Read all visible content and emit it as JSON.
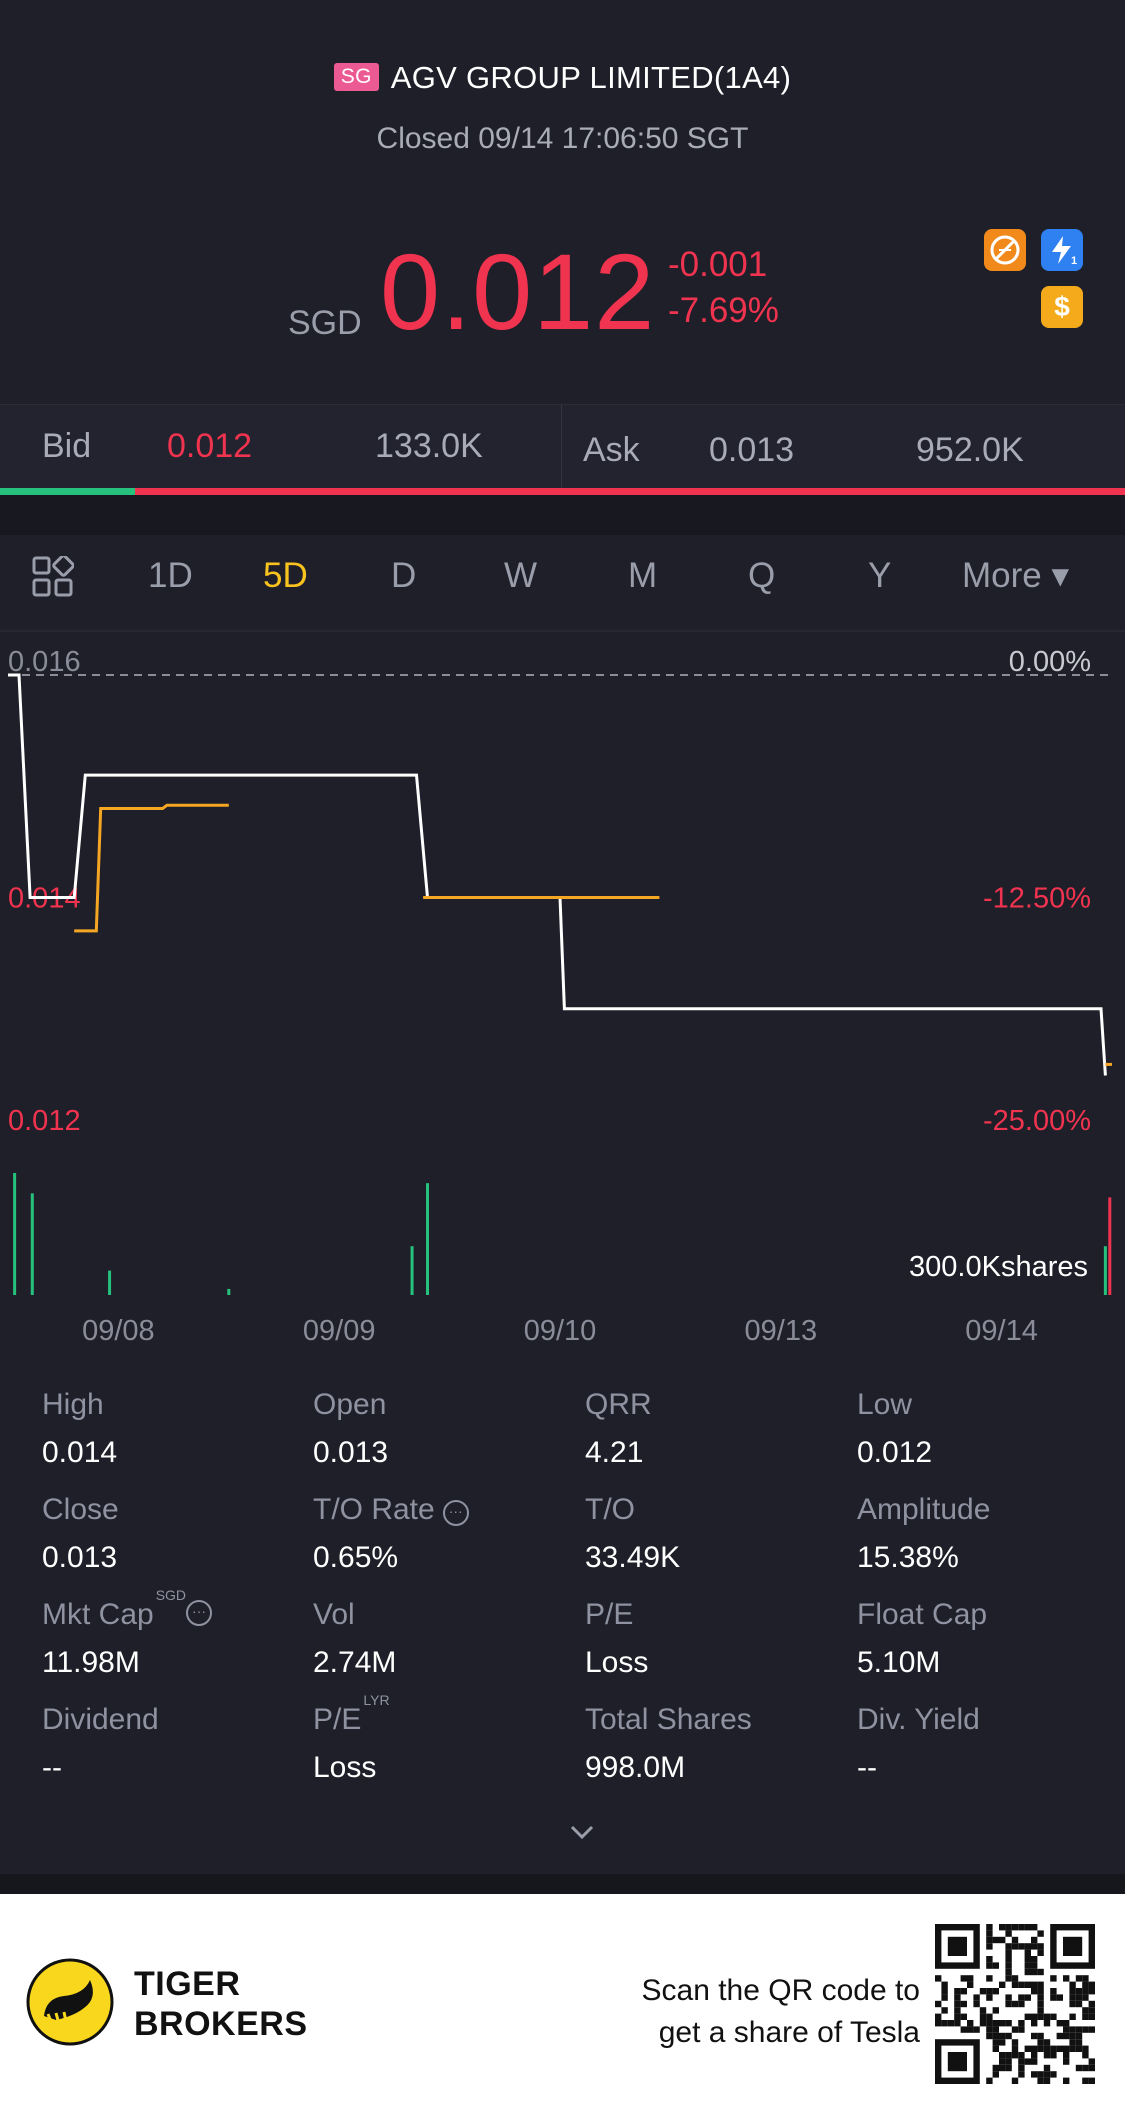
{
  "header": {
    "market_flag": "SG",
    "title": "AGV GROUP LIMITED(1A4)",
    "status": "Closed 09/14 17:06:50 SGT"
  },
  "quote": {
    "currency": "SGD",
    "price": "0.012",
    "change": "-0.001",
    "change_pct": "-7.69%",
    "accent_down": "#f0334f",
    "accent_up": "#26c27d"
  },
  "badges": [
    {
      "icon": "no-short-icon"
    },
    {
      "icon": "lightning-level1-icon"
    },
    {
      "icon": "dollar-icon",
      "glyph": "$"
    }
  ],
  "bidask": {
    "bid_label": "Bid",
    "bid_price": "0.012",
    "bid_size": "133.0K",
    "ask_label": "Ask",
    "ask_price": "0.013",
    "ask_size": "952.0K",
    "bid_ratio": 0.12
  },
  "tabs": [
    {
      "label": "1D",
      "active": false
    },
    {
      "label": "5D",
      "active": true
    },
    {
      "label": "D",
      "active": false
    },
    {
      "label": "W",
      "active": false
    },
    {
      "label": "M",
      "active": false
    },
    {
      "label": "Q",
      "active": false
    },
    {
      "label": "Y",
      "active": false
    },
    {
      "label": "More ▾",
      "active": false
    }
  ],
  "chart_data": {
    "type": "line",
    "title": "AGV GROUP LIMITED(1A4) 5D",
    "x_labels": [
      "09/08",
      "09/09",
      "09/10",
      "09/13",
      "09/14"
    ],
    "y_left_labels": [
      "0.016",
      "0.014",
      "0.012"
    ],
    "y_right_labels": [
      "0.00%",
      "-12.50%",
      "-25.00%"
    ],
    "ylim": [
      0.012,
      0.016
    ],
    "prev_close": 0.016,
    "series": [
      {
        "name": "Price",
        "color": "#ffffff",
        "points": [
          [
            0,
            0.016
          ],
          [
            0.05,
            0.016
          ],
          [
            0.1,
            0.014
          ],
          [
            0.3,
            0.014
          ],
          [
            0.35,
            0.0151
          ],
          [
            1.0,
            0.0151
          ],
          [
            1.85,
            0.0151
          ],
          [
            1.9,
            0.014
          ],
          [
            2.5,
            0.014
          ],
          [
            2.52,
            0.013
          ],
          [
            4.95,
            0.013
          ],
          [
            4.97,
            0.0124
          ]
        ]
      },
      {
        "name": "Average",
        "color": "#f5a623",
        "points": [
          [
            0.3,
            0.0137
          ],
          [
            0.4,
            0.0137
          ],
          [
            0.42,
            0.0148
          ],
          [
            0.7,
            0.0148
          ],
          [
            0.72,
            0.01483
          ],
          [
            1.0,
            0.01483
          ]
        ]
      },
      {
        "name": "Average",
        "color": "#f5a623",
        "points": [
          [
            1.88,
            0.014
          ],
          [
            2.95,
            0.014
          ]
        ]
      },
      {
        "name": "Average",
        "color": "#f5a623",
        "points": [
          [
            4.97,
            0.0125
          ],
          [
            5.0,
            0.0125
          ]
        ]
      }
    ],
    "volume_label": "300.0Kshares",
    "volume_max": 300000,
    "volume_bars": [
      {
        "x": 0.03,
        "v": 300000,
        "color": "#26c27d"
      },
      {
        "x": 0.11,
        "v": 250000,
        "color": "#26c27d"
      },
      {
        "x": 0.46,
        "v": 60000,
        "color": "#26c27d"
      },
      {
        "x": 1.0,
        "v": 15000,
        "color": "#26c27d"
      },
      {
        "x": 1.83,
        "v": 120000,
        "color": "#26c27d"
      },
      {
        "x": 1.9,
        "v": 275000,
        "color": "#26c27d"
      },
      {
        "x": 4.97,
        "v": 120000,
        "color": "#26c27d"
      },
      {
        "x": 4.99,
        "v": 240000,
        "color": "#f0334f"
      }
    ]
  },
  "stats": [
    {
      "label": "High",
      "value": "0.014"
    },
    {
      "label": "Open",
      "value": "0.013"
    },
    {
      "label": "QRR",
      "value": "4.21"
    },
    {
      "label": "Low",
      "value": "0.012"
    },
    {
      "label": "Close",
      "value": "0.013"
    },
    {
      "label": "T/O Rate",
      "value": "0.65%",
      "info": true
    },
    {
      "label": "T/O",
      "value": "33.49K"
    },
    {
      "label": "Amplitude",
      "value": "15.38%"
    },
    {
      "label": "Mkt Cap",
      "value": "11.98M",
      "sup": "SGD",
      "info": true
    },
    {
      "label": "Vol",
      "value": "2.74M"
    },
    {
      "label": "P/E",
      "value": "Loss"
    },
    {
      "label": "Float Cap",
      "value": "5.10M"
    },
    {
      "label": "Dividend",
      "value": "--"
    },
    {
      "label": "P/E",
      "value": "Loss",
      "sup": "LYR"
    },
    {
      "label": "Total Shares",
      "value": "998.0M"
    },
    {
      "label": "Div. Yield",
      "value": "--"
    }
  ],
  "footer": {
    "brand_line1": "TIGER",
    "brand_line2": "BROKERS",
    "scan_line1": "Scan the QR code to",
    "scan_line2": "get a share of Tesla"
  }
}
